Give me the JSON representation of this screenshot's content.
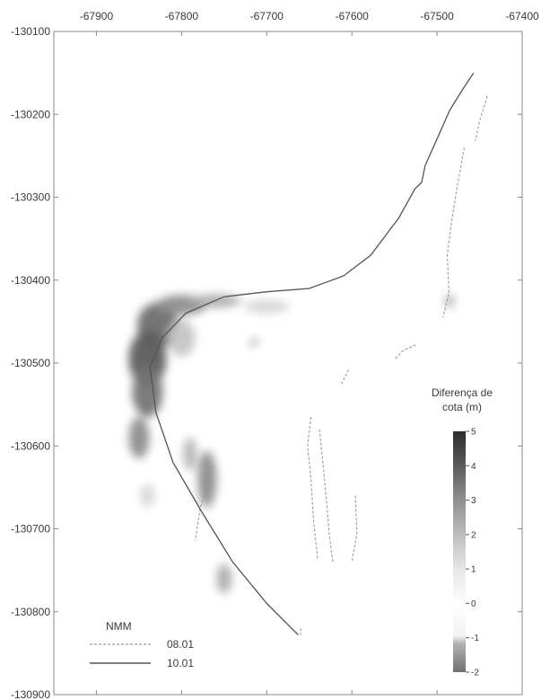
{
  "chart_data": {
    "type": "heatmap",
    "xlim": [
      -67950,
      -67400
    ],
    "ylim": [
      -130900,
      -130100
    ],
    "x_ticks": [
      -67900,
      -67800,
      -67700,
      -67600,
      -67500,
      -67400
    ],
    "y_ticks": [
      -130100,
      -130200,
      -130300,
      -130400,
      -130500,
      -130600,
      -130700,
      -130800,
      -130900
    ],
    "x_tick_labels": [
      "-67900",
      "-67800",
      "-67700",
      "-67600",
      "-67500",
      "-67400"
    ],
    "y_tick_labels": [
      "-130100",
      "-130200",
      "-130300",
      "-130400",
      "-130500",
      "-130600",
      "-130700",
      "-130800",
      "-130900"
    ],
    "x_axis_position": "top",
    "grid": false,
    "legend": {
      "title": "NMM",
      "placement": "bottom-left",
      "entries": [
        {
          "label": "08.01",
          "style": "dashed",
          "color": "#9a9a9a"
        },
        {
          "label": "10.01",
          "style": "solid",
          "color": "#555555"
        }
      ]
    },
    "colorbar": {
      "title_line1": "Diferença de",
      "title_line2": "cota (m)",
      "min": -2,
      "max": 5,
      "ticks": [
        5,
        4,
        3,
        2,
        1,
        0,
        -1,
        -2
      ],
      "tick_labels": [
        "5",
        "4",
        "3",
        "2",
        "1",
        "0",
        "-1",
        "-2"
      ],
      "placement": "right"
    },
    "series": [
      {
        "name": "08.01",
        "style": "dashed",
        "segments": [
          [
            [
              -67441,
              -130178
            ],
            [
              -67450,
              -130208
            ],
            [
              -67455,
              -130232
            ]
          ],
          [
            [
              -67468,
              -130240
            ],
            [
              -67476,
              -130285
            ],
            [
              -67483,
              -130330
            ],
            [
              -67488,
              -130370
            ],
            [
              -67486,
              -130415
            ],
            [
              -67493,
              -130445
            ]
          ],
          [
            [
              -67525,
              -130478
            ],
            [
              -67540,
              -130485
            ],
            [
              -67550,
              -130496
            ]
          ],
          [
            [
              -67604,
              -130508
            ],
            [
              -67612,
              -130525
            ]
          ],
          [
            [
              -67648,
              -130565
            ],
            [
              -67652,
              -130600
            ],
            [
              -67648,
              -130640
            ],
            [
              -67645,
              -130690
            ],
            [
              -67640,
              -130738
            ]
          ],
          [
            [
              -67638,
              -130580
            ],
            [
              -67634,
              -130620
            ],
            [
              -67630,
              -130665
            ],
            [
              -67626,
              -130712
            ],
            [
              -67622,
              -130742
            ]
          ],
          [
            [
              -67596,
              -130660
            ],
            [
              -67594,
              -130705
            ],
            [
              -67600,
              -130740
            ]
          ],
          [
            [
              -67660,
              -130820
            ],
            [
              -67660,
              -130828
            ]
          ],
          [
            [
              -67762,
              -130624
            ],
            [
              -67778,
              -130675
            ],
            [
              -67784,
              -130714
            ]
          ]
        ]
      },
      {
        "name": "10.01",
        "style": "solid",
        "points": [
          [
            -67457,
            -130150
          ],
          [
            -67470,
            -130170
          ],
          [
            -67485,
            -130195
          ],
          [
            -67498,
            -130225
          ],
          [
            -67514,
            -130262
          ],
          [
            -67518,
            -130282
          ],
          [
            -67526,
            -130290
          ],
          [
            -67545,
            -130325
          ],
          [
            -67578,
            -130370
          ],
          [
            -67610,
            -130395
          ],
          [
            -67650,
            -130410
          ],
          [
            -67700,
            -130414
          ],
          [
            -67750,
            -130420
          ],
          [
            -67795,
            -130440
          ],
          [
            -67823,
            -130470
          ],
          [
            -67837,
            -130505
          ],
          [
            -67830,
            -130560
          ],
          [
            -67810,
            -130620
          ],
          [
            -67776,
            -130680
          ],
          [
            -67740,
            -130740
          ],
          [
            -67700,
            -130790
          ],
          [
            -67663,
            -130828
          ]
        ]
      }
    ],
    "difference_blobs": [
      {
        "x": -67828,
        "y": -130455,
        "dx": 24,
        "dy": 28,
        "value": 3.4
      },
      {
        "x": -67840,
        "y": -130495,
        "dx": 22,
        "dy": 34,
        "value": 3.8
      },
      {
        "x": -67840,
        "y": -130535,
        "dx": 18,
        "dy": 30,
        "value": 3.2
      },
      {
        "x": -67850,
        "y": -130590,
        "dx": 12,
        "dy": 25,
        "value": 2.6
      },
      {
        "x": -67800,
        "y": -130430,
        "dx": 30,
        "dy": 12,
        "value": 2.6
      },
      {
        "x": -67760,
        "y": -130425,
        "dx": 30,
        "dy": 8,
        "value": 1.8
      },
      {
        "x": -67800,
        "y": -130470,
        "dx": 16,
        "dy": 22,
        "value": 1.2
      },
      {
        "x": -67770,
        "y": -130640,
        "dx": 11,
        "dy": 34,
        "value": 2.6
      },
      {
        "x": -67790,
        "y": -130610,
        "dx": 8,
        "dy": 20,
        "value": 1.6
      },
      {
        "x": -67750,
        "y": -130760,
        "dx": 9,
        "dy": 18,
        "value": 1.8
      },
      {
        "x": -67700,
        "y": -130432,
        "dx": 26,
        "dy": 8,
        "value": 0.8
      },
      {
        "x": -67715,
        "y": -130475,
        "dx": 5,
        "dy": 5,
        "value": 1.8
      },
      {
        "x": -67485,
        "y": -130425,
        "dx": 5,
        "dy": 8,
        "value": 2.0
      },
      {
        "x": -67840,
        "y": -130660,
        "dx": 8,
        "dy": 14,
        "value": 0.8
      }
    ]
  }
}
